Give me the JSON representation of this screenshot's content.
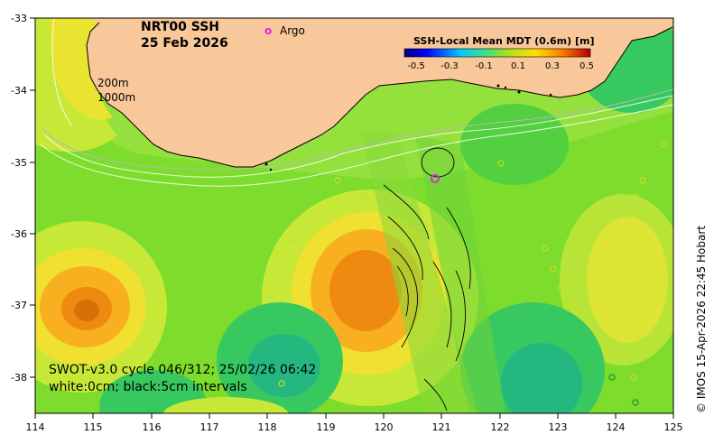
{
  "title": {
    "product": "NRT00 SSH",
    "date": "25 Feb 2026"
  },
  "legend": {
    "argo_symbol": "o",
    "argo_label": "Argo",
    "colorbar_title": "SSH-Local Mean MDT (0.6m) [m]",
    "colorbar_ticks": [
      "-0.5",
      "-0.3",
      "-0.1",
      "0.1",
      "0.3",
      "0.5"
    ]
  },
  "isobaths": [
    "200m",
    "1000m"
  ],
  "footer": {
    "swot_line": "SWOT-v3.0 cycle 046/312; 25/02/26 06:42",
    "contour_line": "white:0cm; black:5cm intervals"
  },
  "credit": "© IMOS 15-Apr-2026 22:45 Hobart",
  "axes": {
    "x_ticks": [
      "114",
      "115",
      "116",
      "117",
      "118",
      "119",
      "120",
      "121",
      "122",
      "123",
      "124",
      "125"
    ],
    "y_ticks": [
      "-33",
      "-34",
      "-35",
      "-36",
      "-37",
      "-38"
    ]
  },
  "colors": {
    "land": "#f8c89a",
    "ocean_base": "#7ddc2c",
    "argo": "#e020e0"
  }
}
